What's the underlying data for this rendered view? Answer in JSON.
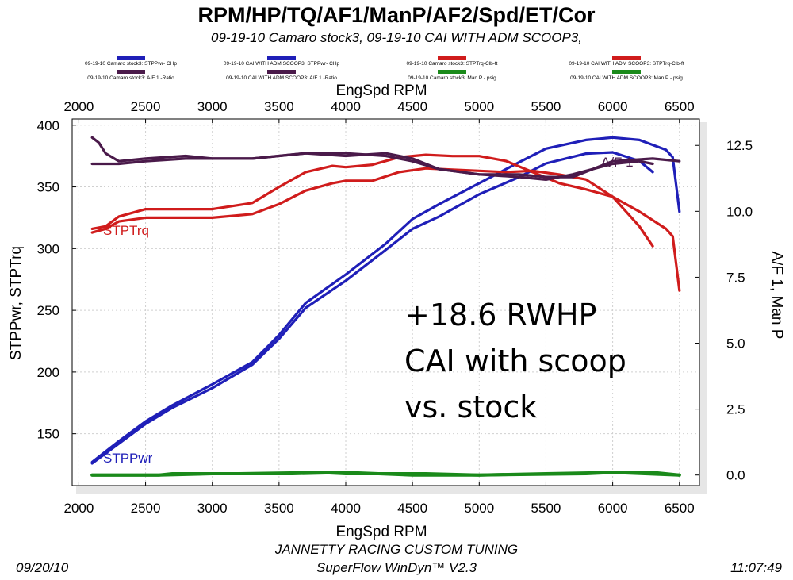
{
  "header": {
    "title": "RPM/HP/TQ/AF1/ManP/AF2/Spd/ET/Cor",
    "subtitle": "09-19-10 Camaro stock3, 09-19-10 CAI WITH ADM SCOOP3,"
  },
  "legend": [
    {
      "label": "09-19-10 Camaro stock3: STPPwr- CHp",
      "color": "#1f1fb8"
    },
    {
      "label": "09-19-10 CAI WITH ADM SCOOP3: STPPwr- CHp",
      "color": "#1f1fb8"
    },
    {
      "label": "09-19-10 Camaro stock3: STPTrq-Clb-ft",
      "color": "#d01c1c"
    },
    {
      "label": "09-19-10 CAI WITH ADM SCOOP3: STPTrq-Clb-ft",
      "color": "#d01c1c"
    },
    {
      "label": "09-19-10 Camaro stock3: A/F 1 -Ratio",
      "color": "#4a1a4a"
    },
    {
      "label": "09-19-10 CAI WITH ADM SCOOP3: A/F 1 -Ratio",
      "color": "#4a1a4a"
    },
    {
      "label": "09-19-10 Camaro stock3: Man P - psig",
      "color": "#1a8a1a"
    },
    {
      "label": "09-19-10 CAI WITH ADM SCOOP3: Man P - psig",
      "color": "#1a8a1a"
    }
  ],
  "footer": {
    "line1": "JANNETTY RACING CUSTOM TUNING",
    "line2": "SuperFlow WinDyn™ V2.3",
    "date": "09/20/10",
    "time": "11:07:49"
  },
  "chart_data": {
    "type": "line",
    "xlabel": "EngSpd  RPM",
    "ylabel_left": "STPPwr, STPTrq",
    "ylabel_right": "A/F 1, Man P",
    "xlim": [
      1950,
      6650
    ],
    "ylim_left": [
      108,
      405
    ],
    "ylim_right": [
      -0.4,
      13.5
    ],
    "x_ticks": [
      "2000",
      "2500",
      "3000",
      "3500",
      "4000",
      "4500",
      "5000",
      "5500",
      "6000",
      "6500"
    ],
    "y_left_ticks": [
      "400",
      "350",
      "300",
      "250",
      "200",
      "150"
    ],
    "y_right_ticks": [
      "12.5",
      "10.0",
      "7.5",
      "5.0",
      "2.5",
      "0.0"
    ],
    "grid": true,
    "annotations": {
      "curve_label_power": "STPPwr",
      "curve_label_torque": "STPTrq",
      "curve_label_af": "A/F  1",
      "text_line1": "+18.6 RWHP",
      "text_line2": "CAI with scoop",
      "text_line3": "vs. stock"
    },
    "colors": {
      "power": "#1f1fb8",
      "torque": "#d01c1c",
      "af": "#4a1a4a",
      "manp": "#1a8a1a",
      "plot_bg": "#ffffff"
    },
    "series": [
      {
        "axis": "left",
        "color": "#1f1fb8",
        "x": [
          2100,
          2300,
          2500,
          2700,
          3000,
          3300,
          3500,
          3700,
          4000,
          4300,
          4500,
          4700,
          5000,
          5300,
          5500,
          5800,
          6000,
          6200,
          6300
        ],
        "values": [
          126,
          142,
          158,
          171,
          187,
          206,
          227,
          252,
          274,
          299,
          316,
          326,
          344,
          358,
          369,
          377,
          378,
          371,
          362
        ]
      },
      {
        "axis": "left",
        "color": "#1f1fb8",
        "x": [
          2100,
          2300,
          2500,
          2700,
          3000,
          3300,
          3500,
          3700,
          4000,
          4300,
          4500,
          4700,
          5000,
          5300,
          5500,
          5800,
          6000,
          6200,
          6400,
          6450,
          6500
        ],
        "values": [
          127,
          144,
          160,
          173,
          190,
          208,
          230,
          256,
          279,
          304,
          324,
          336,
          353,
          370,
          381,
          388,
          390,
          388,
          380,
          374,
          330
        ]
      },
      {
        "axis": "left",
        "color": "#d01c1c",
        "x": [
          2100,
          2200,
          2300,
          2500,
          2800,
          3000,
          3300,
          3500,
          3700,
          3900,
          4000,
          4200,
          4400,
          4600,
          4800,
          5000,
          5200,
          5400,
          5600,
          5800,
          6000,
          6200,
          6300
        ],
        "values": [
          313,
          316,
          322,
          325,
          325,
          325,
          328,
          336,
          347,
          353,
          355,
          355,
          362,
          365,
          364,
          363,
          362,
          363,
          360,
          356,
          342,
          318,
          302
        ]
      },
      {
        "axis": "left",
        "color": "#d01c1c",
        "x": [
          2100,
          2200,
          2300,
          2500,
          2800,
          3000,
          3300,
          3500,
          3700,
          3900,
          4000,
          4200,
          4400,
          4600,
          4800,
          5000,
          5200,
          5400,
          5600,
          5800,
          6000,
          6200,
          6400,
          6450,
          6500
        ],
        "values": [
          316,
          318,
          326,
          332,
          332,
          332,
          337,
          350,
          362,
          367,
          366,
          368,
          374,
          376,
          375,
          375,
          371,
          362,
          353,
          348,
          342,
          330,
          316,
          310,
          266
        ]
      },
      {
        "axis": "right",
        "color": "#4a1a4a",
        "x": [
          2100,
          2150,
          2200,
          2300,
          2500,
          2800,
          3000,
          3300,
          3500,
          3700,
          4000,
          4300,
          4500,
          4700,
          5000,
          5300,
          5500,
          5700,
          6000,
          6200,
          6300
        ],
        "values": [
          12.8,
          12.6,
          12.2,
          11.9,
          12.0,
          12.1,
          12.0,
          12.0,
          12.1,
          12.2,
          12.2,
          12.1,
          11.9,
          11.6,
          11.4,
          11.3,
          11.2,
          11.4,
          11.8,
          11.9,
          11.8
        ]
      },
      {
        "axis": "right",
        "color": "#4a1a4a",
        "x": [
          2100,
          2300,
          2500,
          2800,
          3000,
          3300,
          3500,
          3700,
          4000,
          4300,
          4500,
          4700,
          5000,
          5300,
          5500,
          5700,
          6000,
          6300,
          6500
        ],
        "values": [
          11.8,
          11.8,
          11.9,
          12.0,
          12.0,
          12.0,
          12.1,
          12.2,
          12.1,
          12.2,
          12.0,
          11.6,
          11.4,
          11.4,
          11.3,
          11.3,
          11.9,
          12.0,
          11.9
        ]
      },
      {
        "axis": "right",
        "color": "#1a8a1a",
        "x": [
          2100,
          2600,
          2700,
          2900,
          3200,
          3800,
          4000,
          4600,
          5000,
          5800,
          6000,
          6500
        ],
        "values": [
          0.0,
          0.0,
          0.05,
          0.05,
          0.05,
          0.1,
          0.05,
          0.05,
          0.0,
          0.05,
          0.1,
          0.0
        ]
      },
      {
        "axis": "right",
        "color": "#1a8a1a",
        "x": [
          2100,
          2600,
          3000,
          3600,
          4000,
          4500,
          5000,
          5500,
          6000,
          6300,
          6500
        ],
        "values": [
          0.0,
          0.0,
          0.05,
          0.05,
          0.1,
          0.0,
          0.0,
          0.05,
          0.1,
          0.1,
          0.0
        ]
      }
    ]
  }
}
